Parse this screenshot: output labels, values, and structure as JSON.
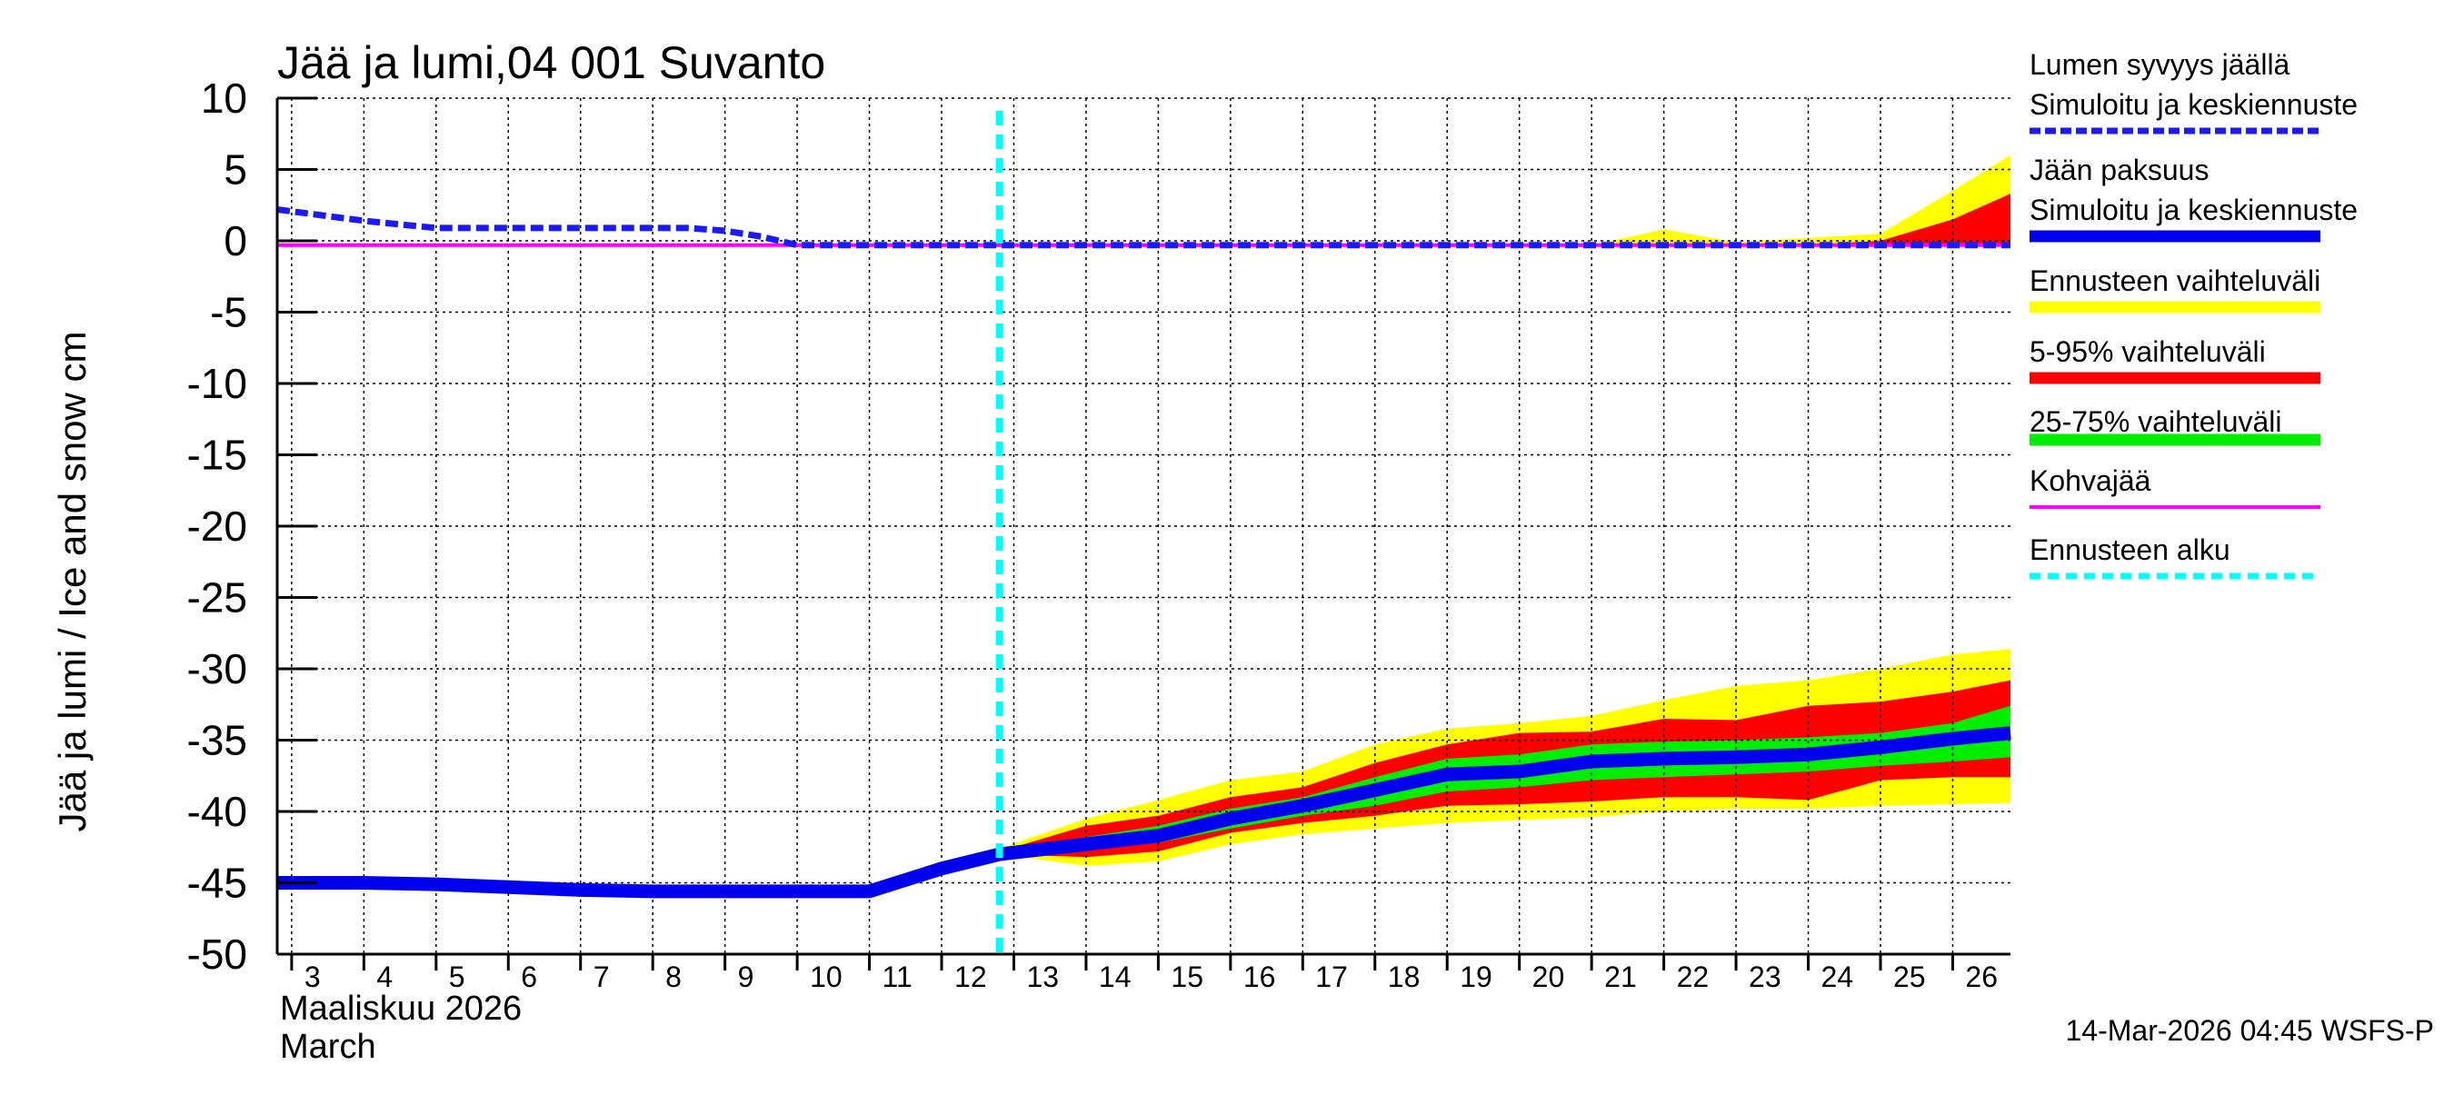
{
  "title": "Jää ja lumi,04 001 Suvanto",
  "ylabel": "Jää ja lumi / Ice and snow    cm",
  "month_fi": "Maaliskuu 2026",
  "month_en": "March",
  "footer": "14-Mar-2026 04:45 WSFS-P",
  "colors": {
    "snow": "#1a1aff",
    "ice": "#0000ee",
    "yellow": "#ffff00",
    "red": "#ff0000",
    "green": "#00ee00",
    "slush": "#ff00ff",
    "forecast_start": "#00ffff",
    "grid": "#000000"
  },
  "legend": [
    {
      "lines": [
        "Lumen syvyys jäällä",
        "Simuloitu ja keskiennuste"
      ],
      "style": "dashed-blue"
    },
    {
      "lines": [
        "Jään paksuus",
        "Simuloitu ja keskiennuste"
      ],
      "style": "solid-blue"
    },
    {
      "lines": [
        "Ennusteen vaihteluväli"
      ],
      "style": "yellow"
    },
    {
      "lines": [
        "5-95% vaihteluväli"
      ],
      "style": "red"
    },
    {
      "lines": [
        "25-75% vaihteluväli"
      ],
      "style": "green"
    },
    {
      "lines": [
        "Kohvajää"
      ],
      "style": "magenta"
    },
    {
      "lines": [
        "Ennusteen alku"
      ],
      "style": "cyan-dashed"
    }
  ],
  "chart_data": {
    "type": "area",
    "title": "Jää ja lumi,04 001 Suvanto",
    "ylabel": "Jää ja lumi / Ice and snow    cm",
    "xlabel": "Maaliskuu 2026 / March",
    "x_ticks": [
      3,
      4,
      5,
      6,
      7,
      8,
      9,
      10,
      11,
      12,
      13,
      14,
      15,
      16,
      17,
      18,
      19,
      20,
      21,
      22,
      23,
      24,
      25,
      26
    ],
    "y_ticks": [
      10,
      5,
      0,
      -5,
      -10,
      -15,
      -20,
      -25,
      -30,
      -35,
      -40,
      -45,
      -50
    ],
    "xlim": [
      2.8,
      26.8
    ],
    "ylim": [
      -50,
      10
    ],
    "grid": true,
    "legend_position": "right",
    "forecast_start_day": 12.8,
    "series": [
      {
        "name": "Lumen syvyys jäällä - Simuloitu ja keskiennuste",
        "x": [
          2.8,
          4,
          5,
          6,
          7,
          8,
          8.5,
          9,
          9.5,
          10,
          11,
          12,
          13,
          14,
          15,
          16,
          17,
          18,
          19,
          20,
          21,
          22,
          23,
          24,
          25,
          26,
          26.8
        ],
        "y": [
          2.2,
          1.4,
          0.9,
          0.9,
          0.9,
          0.9,
          0.9,
          0.7,
          0.3,
          -0.3,
          -0.3,
          -0.3,
          -0.3,
          -0.3,
          -0.3,
          -0.3,
          -0.3,
          -0.3,
          -0.3,
          -0.3,
          -0.3,
          -0.3,
          -0.3,
          -0.3,
          -0.3,
          -0.3,
          -0.3
        ]
      },
      {
        "name": "Jään paksuus - Simuloitu ja keskiennuste",
        "x": [
          2.8,
          4,
          5,
          6,
          7,
          8,
          9,
          10,
          11,
          12,
          12.8,
          14,
          15,
          16,
          17,
          18,
          19,
          20,
          21,
          22,
          23,
          24,
          25,
          26,
          26.8
        ],
        "y": [
          -45.0,
          -45.0,
          -45.1,
          -45.3,
          -45.5,
          -45.6,
          -45.6,
          -45.6,
          -45.6,
          -44.0,
          -43.0,
          -42.3,
          -41.7,
          -40.5,
          -39.6,
          -38.5,
          -37.4,
          -37.2,
          -36.5,
          -36.3,
          -36.2,
          -36.0,
          -35.5,
          -34.9,
          -34.5
        ]
      },
      {
        "name": "Kohvajää",
        "x": [
          2.8,
          26.8
        ],
        "y": [
          -0.3,
          -0.3
        ]
      }
    ],
    "bands": [
      {
        "name": "Ennusteen vaihteluväli (thickness)",
        "x": [
          12.8,
          14,
          15,
          16,
          17,
          18,
          19,
          20,
          21,
          22,
          23,
          24,
          25,
          26,
          26.8
        ],
        "upper": [
          -42.6,
          -40.5,
          -39.2,
          -37.8,
          -37.2,
          -35.3,
          -34.2,
          -33.8,
          -33.3,
          -32.2,
          -31.2,
          -30.8,
          -30.0,
          -29.0,
          -28.6
        ],
        "lower": [
          -43.0,
          -43.8,
          -43.5,
          -42.3,
          -41.6,
          -41.2,
          -40.8,
          -40.6,
          -40.4,
          -40.0,
          -39.8,
          -39.8,
          -39.6,
          -39.5,
          -39.4
        ]
      },
      {
        "name": "5-95% vaihteluväli (thickness)",
        "x": [
          12.8,
          14,
          15,
          16,
          17,
          18,
          19,
          20,
          21,
          22,
          23,
          24,
          25,
          26,
          26.8
        ],
        "upper": [
          -42.8,
          -41.0,
          -40.3,
          -39.0,
          -38.3,
          -36.6,
          -35.3,
          -34.5,
          -34.4,
          -33.5,
          -33.6,
          -32.6,
          -32.3,
          -31.6,
          -30.8
        ],
        "lower": [
          -43.0,
          -43.2,
          -42.8,
          -41.5,
          -40.8,
          -40.3,
          -39.6,
          -39.5,
          -39.3,
          -39.0,
          -39.0,
          -39.2,
          -37.8,
          -37.6,
          -37.6
        ]
      },
      {
        "name": "25-75% vaihteluväli (thickness)",
        "x": [
          12.8,
          14,
          15,
          16,
          17,
          18,
          19,
          20,
          21,
          22,
          23,
          24,
          25,
          26,
          26.8
        ],
        "upper": [
          -42.9,
          -41.8,
          -41.0,
          -39.8,
          -39.0,
          -37.6,
          -36.3,
          -36.0,
          -35.3,
          -35.1,
          -35.0,
          -34.8,
          -34.5,
          -33.8,
          -32.6
        ],
        "lower": [
          -43.0,
          -42.6,
          -42.2,
          -41.2,
          -40.3,
          -39.6,
          -38.6,
          -38.3,
          -37.8,
          -37.6,
          -37.4,
          -37.2,
          -36.8,
          -36.5,
          -36.2
        ]
      },
      {
        "name": "Ennusteen vaihteluväli (snow)",
        "x": [
          12.8,
          20,
          21,
          22,
          23,
          24,
          25,
          26,
          26.8
        ],
        "upper": [
          -0.3,
          -0.3,
          -0.3,
          0.8,
          -0.1,
          0.2,
          0.5,
          3.5,
          6.0
        ],
        "lower": [
          -0.3,
          -0.3,
          -0.3,
          -0.3,
          -0.3,
          -0.3,
          -0.3,
          -0.3,
          -0.3
        ]
      },
      {
        "name": "5-95% vaihteluväli (snow)",
        "x": [
          12.8,
          24,
          25,
          26,
          26.8
        ],
        "upper": [
          -0.3,
          -0.3,
          0.0,
          1.5,
          3.3
        ],
        "lower": [
          -0.3,
          -0.3,
          -0.3,
          -0.3,
          -0.3
        ]
      }
    ]
  }
}
